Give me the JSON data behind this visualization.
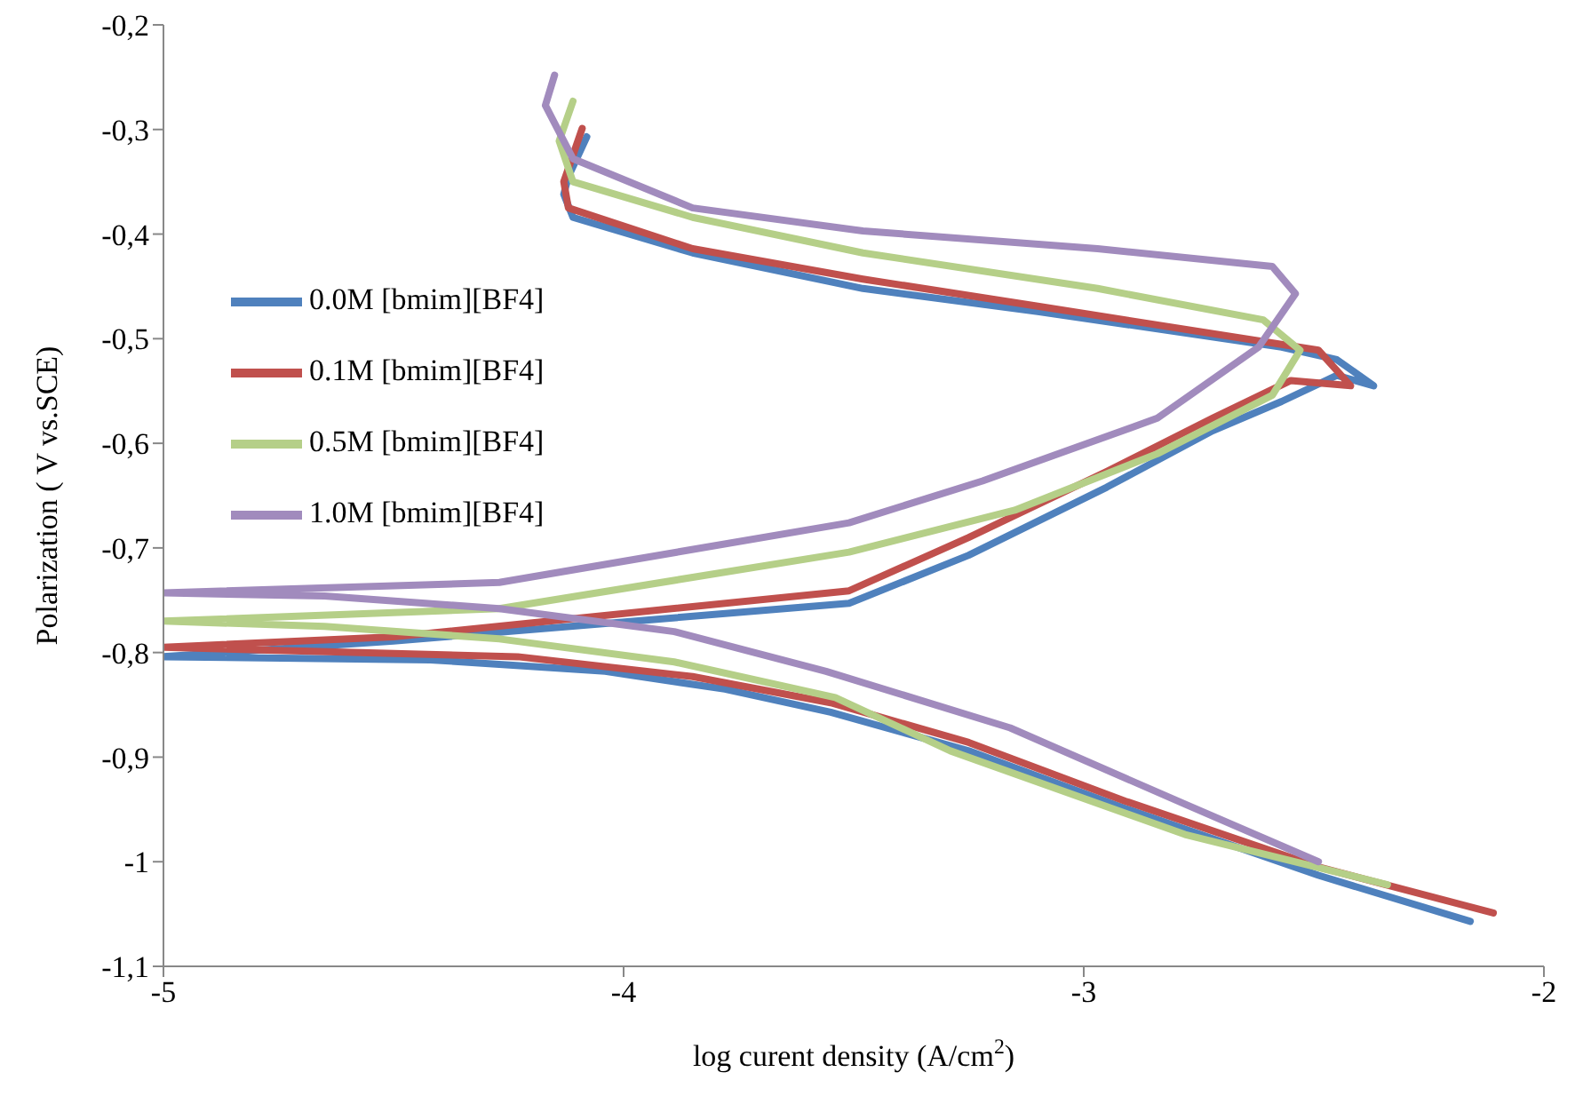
{
  "chart_data": {
    "type": "line",
    "xlabel": "log curent density (A/cm$^{2}$)",
    "ylabel": "Polarization ( V vs.SCE)",
    "xlim": [
      -5,
      -2
    ],
    "xticks": [
      -5,
      -4,
      -3,
      -2
    ],
    "ylim": [
      -1.1,
      -0.2
    ],
    "yticks": [
      {
        "value": -1.1,
        "label": "-1,1"
      },
      {
        "value": -1.0,
        "label": "-1"
      },
      {
        "value": -0.9,
        "label": "-0,9"
      },
      {
        "value": -0.8,
        "label": "-0,8"
      },
      {
        "value": -0.7,
        "label": "-0,7"
      },
      {
        "value": -0.6,
        "label": "-0,6"
      },
      {
        "value": -0.5,
        "label": "-0,5"
      },
      {
        "value": -0.4,
        "label": "-0,4"
      },
      {
        "value": -0.3,
        "label": "-0,3"
      },
      {
        "value": -0.2,
        "label": "-0,2"
      }
    ],
    "grid": false,
    "legend": "left",
    "marker": "none",
    "line_style": "solid",
    "series": [
      {
        "name": "0.0M [bmim][BF4]",
        "color": "#4f81bd",
        "x": [
          -2.16,
          -2.49,
          -2.91,
          -3.25,
          -3.55,
          -3.78,
          -4.04,
          -4.42,
          -5.0,
          -4.5,
          -3.51,
          -3.25,
          -2.95,
          -2.72,
          -2.57,
          -2.45,
          -2.37,
          -2.45,
          -2.57,
          -3.1,
          -3.48,
          -3.85,
          -4.11,
          -4.13,
          -4.12,
          -4.08
        ],
        "values": [
          -1.057,
          -1.013,
          -0.949,
          -0.894,
          -0.857,
          -0.835,
          -0.818,
          -0.807,
          -0.804,
          -0.789,
          -0.753,
          -0.707,
          -0.642,
          -0.588,
          -0.56,
          -0.535,
          -0.545,
          -0.52,
          -0.508,
          -0.474,
          -0.452,
          -0.418,
          -0.384,
          -0.362,
          -0.345,
          -0.307
        ]
      },
      {
        "name": "0.1M [bmim][BF4]",
        "color": "#c0504d",
        "x": [
          -2.11,
          -2.49,
          -2.91,
          -3.25,
          -3.55,
          -3.85,
          -4.23,
          -5.0,
          -4.5,
          -3.51,
          -3.25,
          -2.95,
          -2.72,
          -2.55,
          -2.42,
          -2.49,
          -3.1,
          -3.48,
          -3.85,
          -4.12,
          -4.13,
          -4.09
        ],
        "values": [
          -1.049,
          -1.005,
          -0.942,
          -0.886,
          -0.848,
          -0.823,
          -0.804,
          -0.795,
          -0.785,
          -0.741,
          -0.69,
          -0.627,
          -0.576,
          -0.54,
          -0.545,
          -0.511,
          -0.469,
          -0.443,
          -0.414,
          -0.375,
          -0.35,
          -0.299
        ]
      },
      {
        "name": "0.5M [bmim][BF4]",
        "color": "#b5cf88",
        "x": [
          -2.34,
          -2.78,
          -3.29,
          -3.54,
          -3.89,
          -4.27,
          -4.65,
          -5.0,
          -4.27,
          -3.51,
          -3.15,
          -2.84,
          -2.59,
          -2.53,
          -2.61,
          -2.97,
          -3.48,
          -3.85,
          -4.11,
          -4.14,
          -4.11
        ],
        "values": [
          -1.022,
          -0.974,
          -0.894,
          -0.843,
          -0.809,
          -0.787,
          -0.775,
          -0.77,
          -0.758,
          -0.704,
          -0.664,
          -0.61,
          -0.554,
          -0.511,
          -0.482,
          -0.452,
          -0.418,
          -0.384,
          -0.35,
          -0.311,
          -0.273
        ]
      },
      {
        "name": "1.0M [bmim][BF4]",
        "color": "#a18bbd",
        "x": [
          -2.49,
          -2.78,
          -3.16,
          -3.56,
          -3.89,
          -4.27,
          -4.65,
          -5.0,
          -4.27,
          -3.51,
          -3.22,
          -2.84,
          -2.62,
          -2.54,
          -2.59,
          -2.97,
          -3.48,
          -3.85,
          -4.11,
          -4.17,
          -4.15
        ],
        "values": [
          -1.0,
          -0.945,
          -0.872,
          -0.818,
          -0.78,
          -0.758,
          -0.746,
          -0.743,
          -0.733,
          -0.676,
          -0.636,
          -0.576,
          -0.508,
          -0.457,
          -0.431,
          -0.414,
          -0.397,
          -0.375,
          -0.328,
          -0.277,
          -0.248
        ]
      }
    ]
  }
}
